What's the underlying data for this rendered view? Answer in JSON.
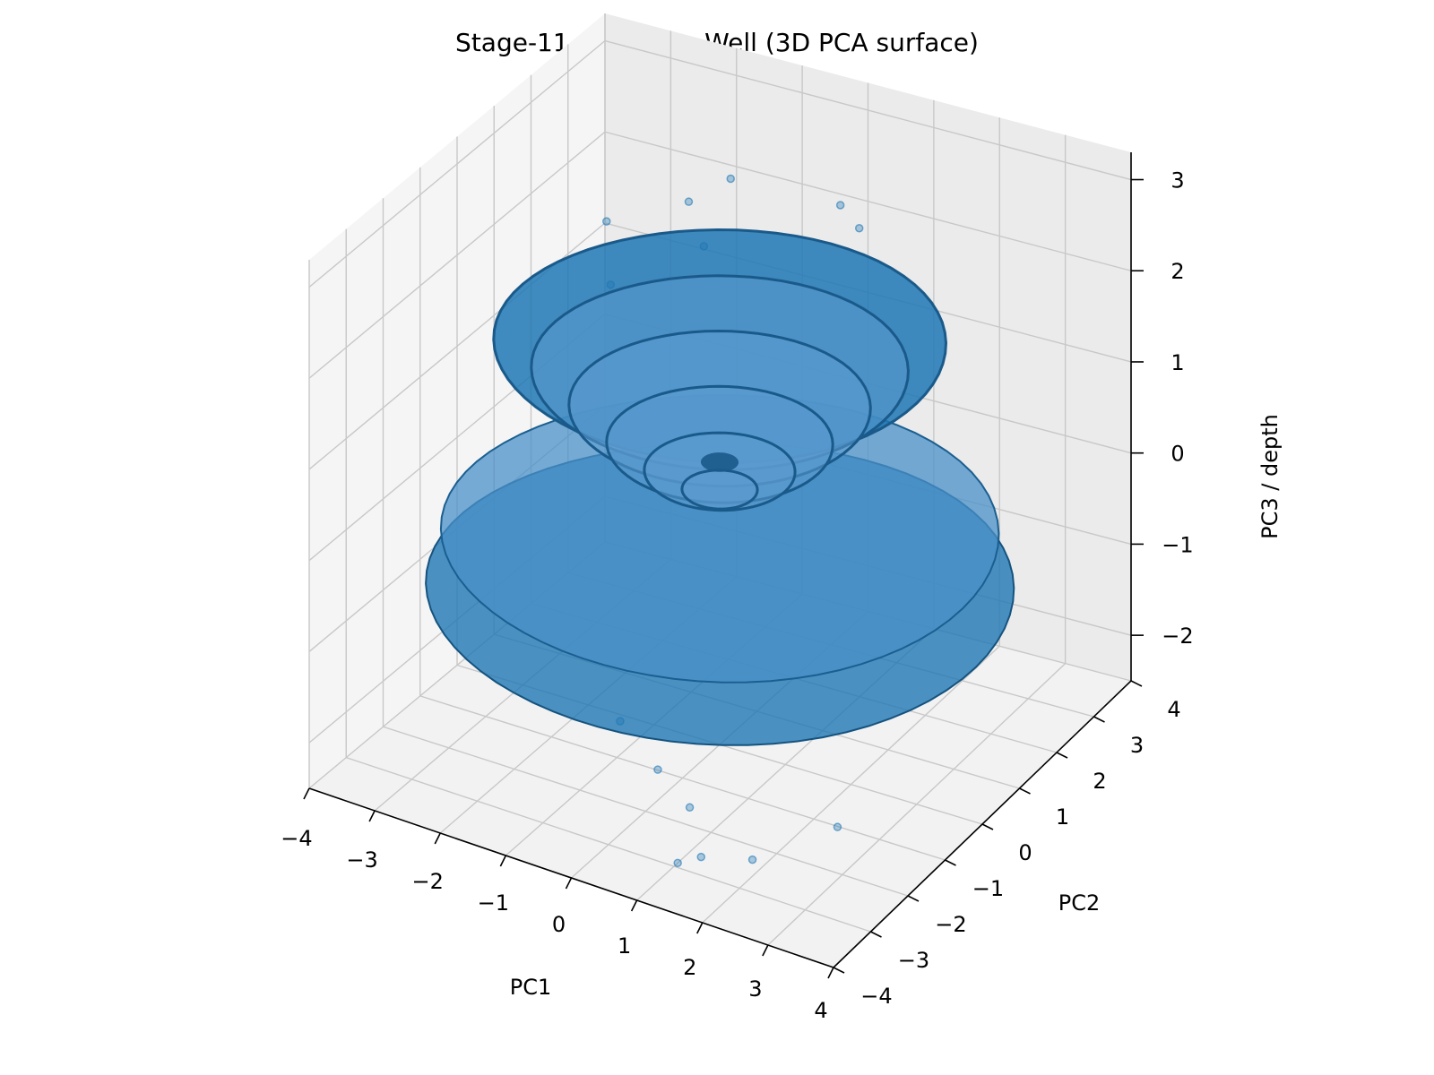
{
  "chart_data": {
    "type": "scatter",
    "subtype": "3d-surface-with-scatter",
    "title": "Stage-11 Cognition Well (3D PCA surface)",
    "xlabel": "PC1",
    "ylabel": "PC2",
    "zlabel": "PC3 / depth",
    "xlim": [
      -4,
      4
    ],
    "ylim": [
      -4,
      4
    ],
    "zlim": [
      -2.5,
      3.3
    ],
    "x_ticks": [
      "−4",
      "−3",
      "−2",
      "−1",
      "0",
      "1",
      "2",
      "3",
      "4"
    ],
    "y_ticks": [
      "−4",
      "−3",
      "−2",
      "−1",
      "0",
      "1",
      "2",
      "3",
      "4"
    ],
    "z_ticks": [
      "−2",
      "−1",
      "0",
      "1",
      "2",
      "3"
    ],
    "grid": true,
    "surface": {
      "shape": "radial well with concentric terraces",
      "rim_radius": 3.0,
      "color": "#1f77b4"
    },
    "scatter": {
      "color": "#1f77b4",
      "alpha": 0.35,
      "points": [
        {
          "x": -2.4,
          "y": 1.2,
          "z": 2.3
        },
        {
          "x": -1.6,
          "y": 2.0,
          "z": 2.4
        },
        {
          "x": -1.3,
          "y": 2.6,
          "z": 2.5
        },
        {
          "x": 0.2,
          "y": 2.9,
          "z": 2.4
        },
        {
          "x": 0.6,
          "y": 2.7,
          "z": 2.3
        },
        {
          "x": -1.2,
          "y": 1.7,
          "z": 2.1
        },
        {
          "x": -2.0,
          "y": 0.6,
          "z": 1.9
        },
        {
          "x": 2.7,
          "y": -1.6,
          "z": -2.2
        },
        {
          "x": 0.9,
          "y": -2.4,
          "z": -2.1
        },
        {
          "x": 1.3,
          "y": -2.8,
          "z": -2.4
        },
        {
          "x": 1.8,
          "y": -2.3,
          "z": -2.5
        },
        {
          "x": 1.0,
          "y": -2.9,
          "z": -2.5
        },
        {
          "x": 0.3,
          "y": -2.2,
          "z": -1.9
        },
        {
          "x": -0.5,
          "y": -1.8,
          "z": -1.7
        }
      ]
    }
  }
}
